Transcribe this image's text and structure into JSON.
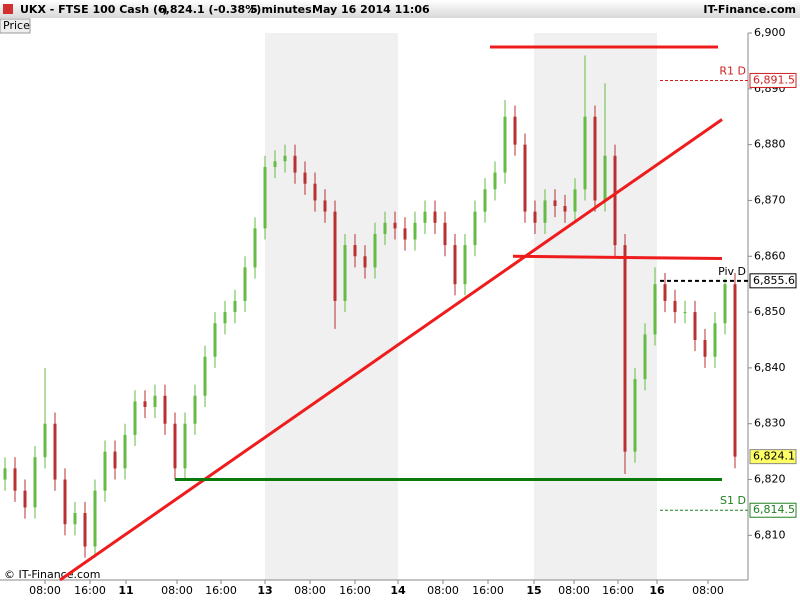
{
  "header": {
    "symbol": "UKX - FTSE 100 Cash (-)",
    "quote": "6,824.1 (-0.38%)",
    "interval": "5 minutes",
    "datetime": "May 16 2014 11:06",
    "brand": "IT-Finance.com"
  },
  "tab": "Price",
  "copyright": "© IT-Finance.com",
  "chart_data": {
    "type": "candlestick",
    "open": [
      6820,
      6822,
      6818,
      6815,
      6824,
      6830,
      6820,
      6812,
      6814,
      6808,
      6818,
      6825,
      6822,
      6828,
      6834,
      6833,
      6835,
      6830,
      6822,
      6830,
      6835,
      6842,
      6848,
      6850,
      6852,
      6858,
      6865,
      6876,
      6877,
      6878,
      6875,
      6873,
      6870,
      6868,
      6852,
      6862,
      6860,
      6858,
      6864,
      6866,
      6865,
      6863,
      6866,
      6868,
      6866,
      6862,
      6855,
      6862,
      6868,
      6872,
      6875,
      6885,
      6880,
      6868,
      6866,
      6870,
      6869,
      6868,
      6872,
      6885,
      6870,
      6878,
      6862,
      6825,
      6838,
      6846,
      6855,
      6852,
      6850,
      6850,
      6845,
      6842,
      6848,
      6855
    ],
    "high": [
      6824,
      6824,
      6820,
      6826,
      6840,
      6832,
      6822,
      6816,
      6816,
      6820,
      6827,
      6827,
      6830,
      6836,
      6836,
      6837,
      6837,
      6832,
      6832,
      6837,
      6844,
      6850,
      6852,
      6854,
      6860,
      6867,
      6878,
      6879,
      6880,
      6880,
      6877,
      6875,
      6872,
      6870,
      6864,
      6864,
      6862,
      6866,
      6868,
      6868,
      6867,
      6868,
      6870,
      6870,
      6868,
      6864,
      6864,
      6870,
      6874,
      6877,
      6888,
      6887,
      6882,
      6870,
      6872,
      6872,
      6871,
      6874,
      6896,
      6887,
      6891,
      6880,
      6864,
      6840,
      6848,
      6858,
      6857,
      6854,
      6852,
      6852,
      6847,
      6850,
      6856,
      6857
    ],
    "low": [
      6818,
      6816,
      6813,
      6813,
      6822,
      6818,
      6810,
      6810,
      6806,
      6806,
      6816,
      6820,
      6820,
      6826,
      6831,
      6831,
      6828,
      6820,
      6820,
      6828,
      6833,
      6840,
      6846,
      6848,
      6850,
      6856,
      6863,
      6874,
      6875,
      6873,
      6871,
      6868,
      6866,
      6847,
      6850,
      6858,
      6856,
      6856,
      6862,
      6863,
      6861,
      6861,
      6864,
      6864,
      6860,
      6853,
      6853,
      6860,
      6866,
      6870,
      6873,
      6878,
      6866,
      6864,
      6864,
      6867,
      6866,
      6866,
      6870,
      6868,
      6868,
      6860,
      6821,
      6823,
      6836,
      6844,
      6850,
      6848,
      6848,
      6843,
      6840,
      6840,
      6846,
      6822
    ],
    "close": [
      6822,
      6818,
      6815,
      6824,
      6830,
      6820,
      6812,
      6814,
      6808,
      6818,
      6825,
      6822,
      6828,
      6834,
      6833,
      6835,
      6830,
      6822,
      6830,
      6835,
      6842,
      6848,
      6850,
      6852,
      6858,
      6865,
      6876,
      6877,
      6878,
      6875,
      6873,
      6870,
      6868,
      6852,
      6862,
      6860,
      6858,
      6864,
      6866,
      6865,
      6863,
      6866,
      6868,
      6866,
      6862,
      6855,
      6862,
      6868,
      6872,
      6875,
      6885,
      6880,
      6868,
      6866,
      6870,
      6869,
      6868,
      6872,
      6885,
      6870,
      6878,
      6862,
      6825,
      6838,
      6846,
      6855,
      6852,
      6850,
      6850,
      6845,
      6842,
      6848,
      6855,
      6824.1
    ],
    "up_color": "#66bb44",
    "down_color": "#b83030",
    "xlim": [
      0,
      74.8
    ],
    "xticks": [
      {
        "value": 4.5,
        "label": "08:00"
      },
      {
        "value": 9,
        "label": "16:00"
      },
      {
        "value": 12.6,
        "label": "11"
      },
      {
        "value": 17.7,
        "label": "08:00"
      },
      {
        "value": 22.1,
        "label": "16:00"
      },
      {
        "value": 26.5,
        "label": "13"
      },
      {
        "value": 31,
        "label": "08:00"
      },
      {
        "value": 35.5,
        "label": "16:00"
      },
      {
        "value": 39.8,
        "label": "14"
      },
      {
        "value": 44.3,
        "label": "08:00"
      },
      {
        "value": 48.8,
        "label": "16:00"
      },
      {
        "value": 53.4,
        "label": "15"
      },
      {
        "value": 57.4,
        "label": "08:00"
      },
      {
        "value": 61.8,
        "label": "16:00"
      },
      {
        "value": 65.7,
        "label": "16"
      },
      {
        "value": 70.8,
        "label": "08:00"
      }
    ],
    "ylim": [
      6802,
      6900
    ],
    "yticks": [
      {
        "value": 6810,
        "label": "6,810"
      },
      {
        "value": 6820,
        "label": "6,820"
      },
      {
        "value": 6830,
        "label": "6,830"
      },
      {
        "value": 6840,
        "label": "6,840"
      },
      {
        "value": 6850,
        "label": "6,850"
      },
      {
        "value": 6860,
        "label": "6,860"
      },
      {
        "value": 6870,
        "label": "6,870"
      },
      {
        "value": 6880,
        "label": "6,880"
      },
      {
        "value": 6890,
        "label": "6,890"
      },
      {
        "value": 6900,
        "label": "6,900"
      }
    ],
    "levels": [
      {
        "name": "R1 D",
        "value": 6891.5,
        "value_label": "6,891.5",
        "color": "#d02020"
      },
      {
        "name": "Piv D",
        "value": 6855.6,
        "value_label": "6,855.6",
        "color": "#000000"
      },
      {
        "name": "S1 D",
        "value": 6814.5,
        "value_label": "6,814.5",
        "color": "#208020"
      }
    ],
    "last": {
      "value": 6824.1,
      "label": "6,824.1",
      "color": "#ffff66"
    },
    "drawings": [
      {
        "color": "#ee1c1c",
        "x": [
          49,
          71.8
        ],
        "y": [
          6897.5,
          6897.5
        ]
      },
      {
        "color": "#ee1c1c",
        "x": [
          6,
          72.2
        ],
        "y": [
          6802,
          6884.5
        ]
      },
      {
        "color": "#ee1c1c",
        "x": [
          51.3,
          72.2
        ],
        "y": [
          6860,
          6859.6
        ]
      },
      {
        "color": "#0a7a0a",
        "x": [
          17.5,
          72.2
        ],
        "y": [
          6820,
          6820
        ]
      }
    ]
  }
}
